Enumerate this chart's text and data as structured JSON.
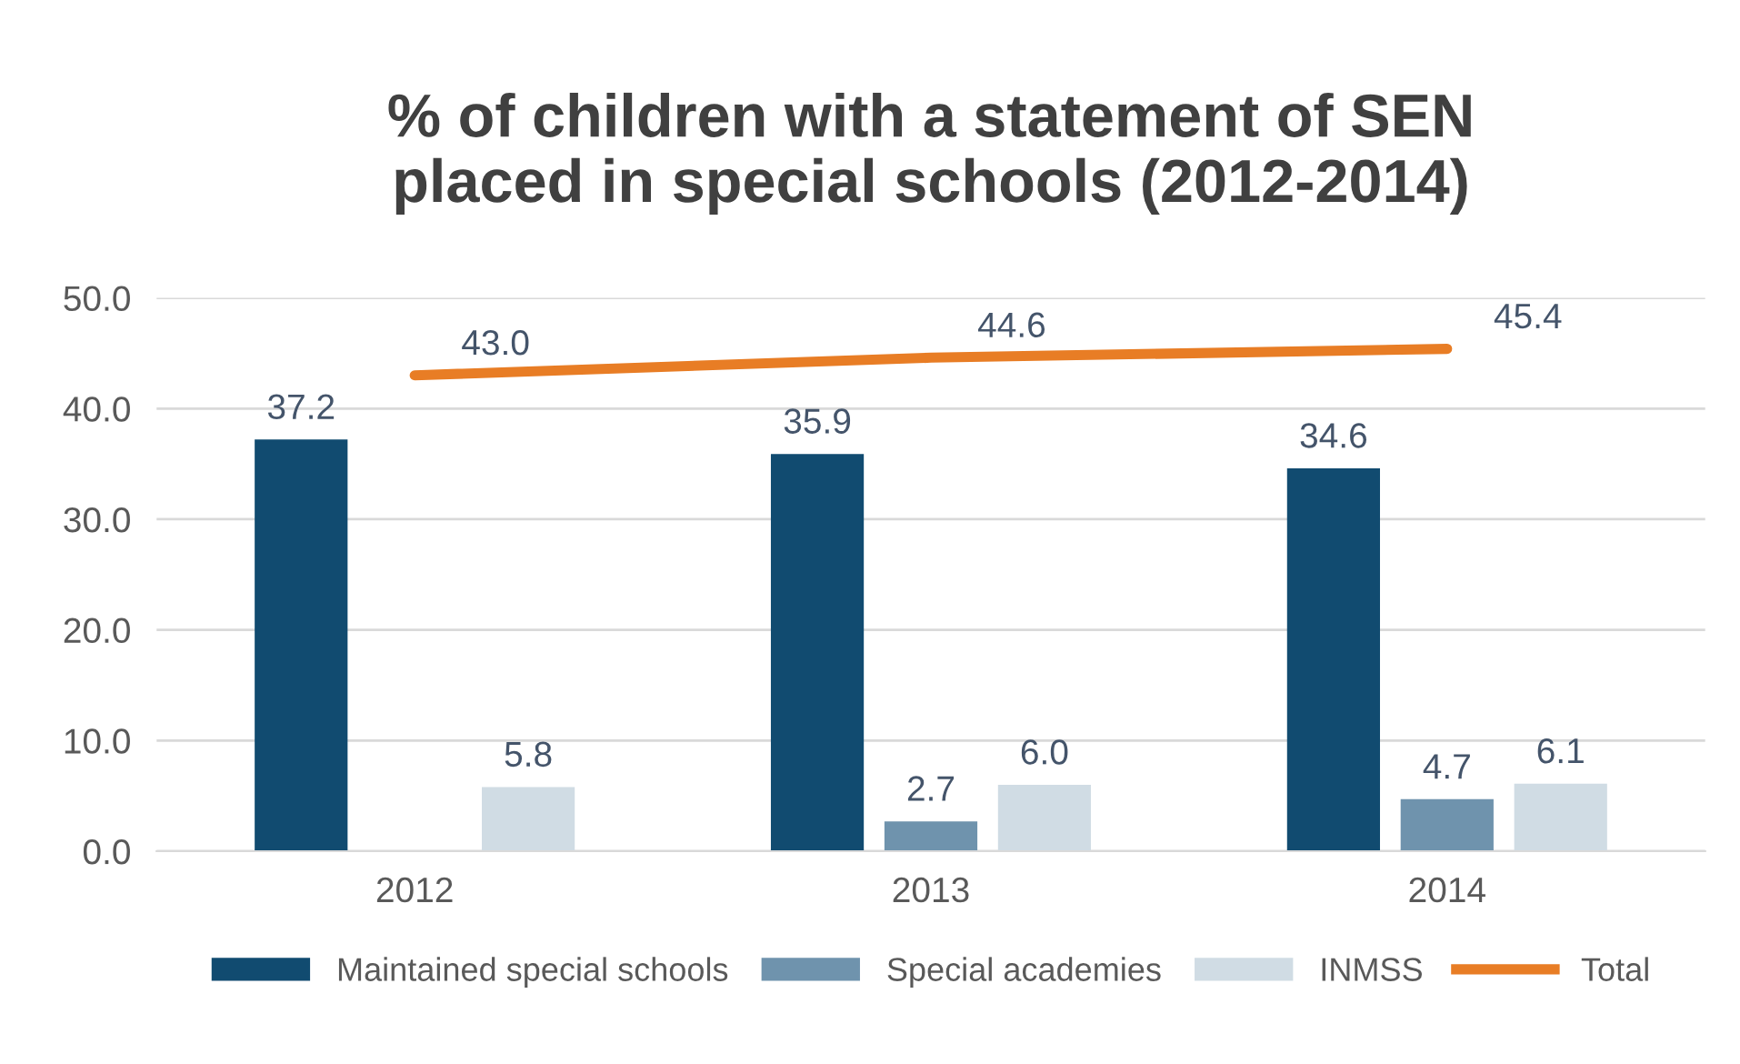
{
  "chart_data": {
    "type": "bar",
    "title": "% of children with a statement of SEN\nplaced in special schools (2012-2014)",
    "categories": [
      "2012",
      "2013",
      "2014"
    ],
    "series": [
      {
        "name": "Maintained special schools",
        "color": "#114b70",
        "values": [
          37.2,
          35.9,
          34.6
        ],
        "value_labels": [
          "37.2",
          "35.9",
          "34.6"
        ]
      },
      {
        "name": "Special academies",
        "color": "#6f93ad",
        "values": [
          null,
          2.7,
          4.7
        ],
        "value_labels": [
          null,
          "2.7",
          "4.7"
        ]
      },
      {
        "name": "INMSS",
        "color": "#d0dce4",
        "values": [
          5.8,
          6.0,
          6.1
        ],
        "value_labels": [
          "5.8",
          "6.0",
          "6.1"
        ]
      },
      {
        "name": "Total",
        "type": "line",
        "color": "#e87d25",
        "values": [
          43.0,
          44.6,
          45.4
        ],
        "value_labels": [
          "43.0",
          "44.6",
          "45.4"
        ]
      }
    ],
    "ylim": [
      0,
      50
    ],
    "yticks": [
      {
        "value": 0,
        "label": "0.0"
      },
      {
        "value": 10,
        "label": "10.0"
      },
      {
        "value": 20,
        "label": "20.0"
      },
      {
        "value": 30,
        "label": "30.0"
      },
      {
        "value": 40,
        "label": "40.0"
      },
      {
        "value": 50,
        "label": "50.0"
      }
    ],
    "grid": "y",
    "legend": "bottom"
  }
}
